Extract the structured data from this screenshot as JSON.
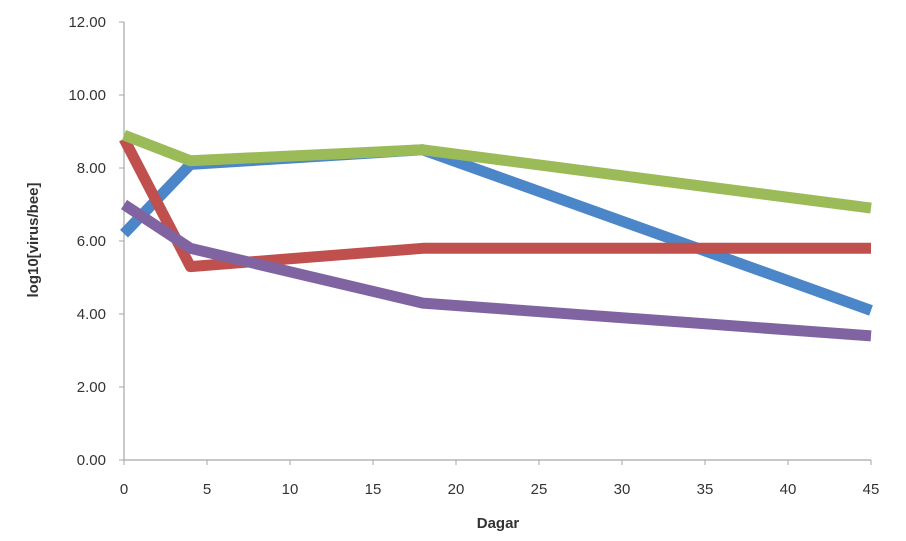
{
  "chart_data": {
    "type": "line",
    "title": "",
    "xlabel": "Dagar",
    "ylabel": "log10[virus/bee]",
    "xlim": [
      0,
      45
    ],
    "ylim": [
      0,
      12
    ],
    "x_ticks": [
      0,
      5,
      10,
      15,
      20,
      25,
      30,
      35,
      40,
      45
    ],
    "x_tick_labels": [
      "0",
      "5",
      "10",
      "15",
      "20",
      "25",
      "30",
      "35",
      "40",
      "45"
    ],
    "y_ticks": [
      0,
      2,
      4,
      6,
      8,
      10,
      12
    ],
    "y_tick_labels": [
      "0.00",
      "2.00",
      "4.00",
      "6.00",
      "8.00",
      "10.00",
      "12.00"
    ],
    "grid": false,
    "legend": "none",
    "series": [
      {
        "color": "#4a86c8",
        "x": [
          0,
          4,
          18,
          45
        ],
        "y": [
          6.2,
          8.1,
          8.5,
          4.1
        ]
      },
      {
        "color": "#c0504d",
        "x": [
          0,
          4,
          18,
          45
        ],
        "y": [
          8.8,
          5.3,
          5.8,
          5.8
        ]
      },
      {
        "color": "#9bbb59",
        "x": [
          0,
          4,
          18,
          45
        ],
        "y": [
          8.9,
          8.2,
          8.5,
          6.9
        ]
      },
      {
        "color": "#8064a2",
        "x": [
          0,
          4,
          18,
          45
        ],
        "y": [
          7.0,
          5.8,
          4.3,
          3.4
        ]
      }
    ]
  }
}
